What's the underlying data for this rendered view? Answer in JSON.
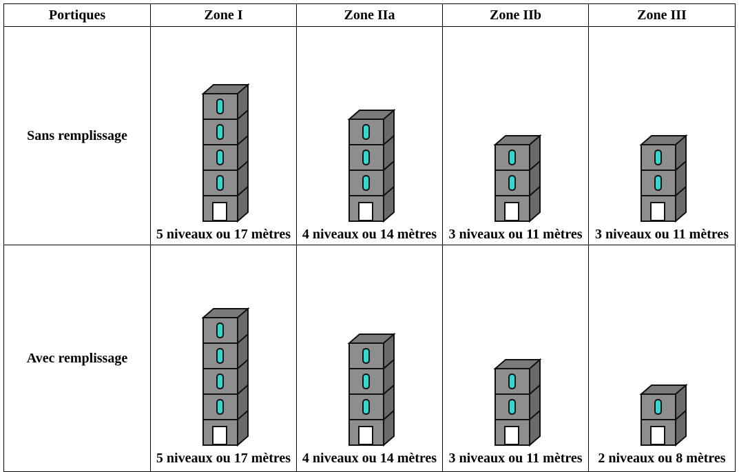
{
  "table": {
    "header": [
      "Portiques",
      "Zone I",
      "Zone IIa",
      "Zone IIb",
      "Zone III"
    ],
    "rows": [
      [
        "Sans remplissage",
        "5 niveaux ou 17 mètres",
        "4 niveaux ou 14 mètres",
        "3 niveaux ou 11 mètres",
        "3 niveaux ou 11 mètres"
      ],
      [
        "Avec remplissage",
        "5 niveaux ou 17 mètres",
        "4 niveaux ou 14 mètres",
        "3 niveaux ou 11 mètres",
        "2 niveaux ou 8 mètres"
      ]
    ]
  }
}
